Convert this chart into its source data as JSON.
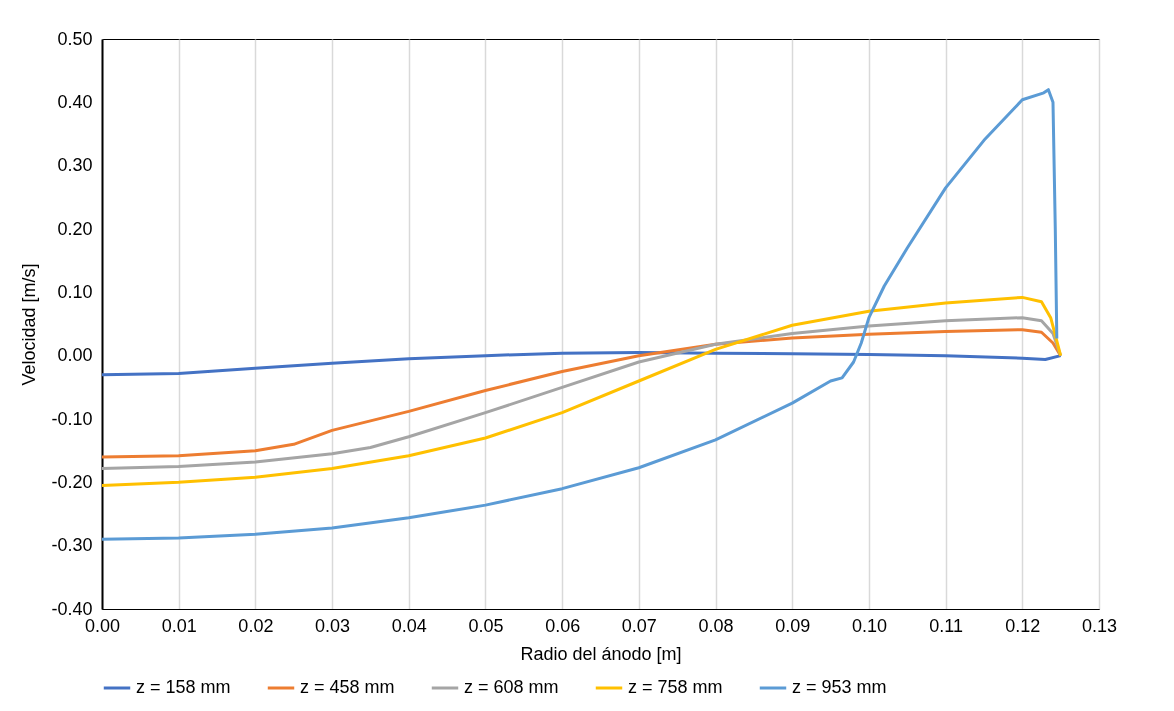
{
  "chart_data": {
    "type": "line",
    "xlabel": "Radio del ánodo [m]",
    "ylabel": "Velocidad  [m/s]",
    "xlim": [
      0,
      0.13
    ],
    "xticks": [
      {
        "value": 0,
        "label": "0.00"
      },
      {
        "value": 0.01,
        "label": "0.01"
      },
      {
        "value": 0.02,
        "label": "0.02"
      },
      {
        "value": 0.03,
        "label": "0.03"
      },
      {
        "value": 0.04,
        "label": "0.04"
      },
      {
        "value": 0.05,
        "label": "0.05"
      },
      {
        "value": 0.06,
        "label": "0.06"
      },
      {
        "value": 0.07,
        "label": "0.07"
      },
      {
        "value": 0.08,
        "label": "0.08"
      },
      {
        "value": 0.09,
        "label": "0.09"
      },
      {
        "value": 0.1,
        "label": "0.10"
      },
      {
        "value": 0.11,
        "label": "0.11"
      },
      {
        "value": 0.12,
        "label": "0.12"
      },
      {
        "value": 0.13,
        "label": "0.13"
      }
    ],
    "ylim": [
      -0.4,
      0.5
    ],
    "yticks": [
      {
        "value": -0.4,
        "label": "-0.40"
      },
      {
        "value": -0.3,
        "label": "-0.30"
      },
      {
        "value": -0.2,
        "label": "-0.20"
      },
      {
        "value": -0.1,
        "label": "-0.10"
      },
      {
        "value": 0,
        "label": "0.00"
      },
      {
        "value": 0.1,
        "label": "0.10"
      },
      {
        "value": 0.2,
        "label": "0.20"
      },
      {
        "value": 0.3,
        "label": "0.30"
      },
      {
        "value": 0.4,
        "label": "0.40"
      },
      {
        "value": 0.5,
        "label": "0.50"
      }
    ],
    "grid": "x",
    "legend": "bottom",
    "marker": "none",
    "line_style": "solid",
    "series": [
      {
        "name": "z = 158 mm",
        "color": "#4472c4",
        "x": [
          0,
          0.01,
          0.02,
          0.03,
          0.04,
          0.05,
          0.06,
          0.07,
          0.08,
          0.09,
          0.1,
          0.11,
          0.12,
          0.123,
          0.125
        ],
        "values": [
          -0.03,
          -0.028,
          -0.02,
          -0.012,
          -0.005,
          0,
          0.004,
          0.005,
          0.004,
          0.003,
          0.002,
          0,
          -0.004,
          -0.006,
          0
        ]
      },
      {
        "name": "z = 458 mm",
        "color": "#ed7d31",
        "x": [
          0,
          0.01,
          0.02,
          0.025,
          0.03,
          0.04,
          0.05,
          0.06,
          0.07,
          0.08,
          0.09,
          0.1,
          0.11,
          0.12,
          0.1225,
          0.124,
          0.125
        ],
        "values": [
          -0.16,
          -0.158,
          -0.15,
          -0.14,
          -0.118,
          -0.088,
          -0.055,
          -0.025,
          0,
          0.018,
          0.028,
          0.034,
          0.038,
          0.041,
          0.037,
          0.02,
          0
        ]
      },
      {
        "name": "z = 608 mm",
        "color": "#a5a5a5",
        "x": [
          0,
          0.01,
          0.02,
          0.03,
          0.035,
          0.04,
          0.05,
          0.06,
          0.07,
          0.08,
          0.09,
          0.1,
          0.11,
          0.12,
          0.1225,
          0.124,
          0.125
        ],
        "values": [
          -0.178,
          -0.175,
          -0.168,
          -0.155,
          -0.145,
          -0.128,
          -0.09,
          -0.05,
          -0.01,
          0.018,
          0.035,
          0.047,
          0.055,
          0.06,
          0.055,
          0.035,
          0
        ]
      },
      {
        "name": "z = 758 mm",
        "color": "#ffc000",
        "x": [
          0,
          0.01,
          0.02,
          0.03,
          0.04,
          0.05,
          0.06,
          0.07,
          0.08,
          0.09,
          0.1,
          0.11,
          0.12,
          0.1225,
          0.1237,
          0.125
        ],
        "values": [
          -0.205,
          -0.2,
          -0.192,
          -0.178,
          -0.158,
          -0.13,
          -0.09,
          -0.04,
          0.01,
          0.048,
          0.07,
          0.083,
          0.092,
          0.085,
          0.06,
          0
        ]
      },
      {
        "name": "z = 953 mm",
        "color": "#5b9bd5",
        "x": [
          0,
          0.01,
          0.02,
          0.03,
          0.04,
          0.05,
          0.06,
          0.07,
          0.08,
          0.09,
          0.095,
          0.0965,
          0.098,
          0.099,
          0.1,
          0.102,
          0.105,
          0.11,
          0.115,
          0.12,
          0.1228,
          0.1234,
          0.124,
          0.1243,
          0.1245
        ],
        "values": [
          -0.29,
          -0.288,
          -0.282,
          -0.272,
          -0.256,
          -0.236,
          -0.21,
          -0.177,
          -0.133,
          -0.075,
          -0.04,
          -0.035,
          -0.01,
          0.02,
          0.06,
          0.11,
          0.17,
          0.265,
          0.34,
          0.404,
          0.415,
          0.42,
          0.4,
          0.2,
          0.027
        ]
      }
    ]
  }
}
